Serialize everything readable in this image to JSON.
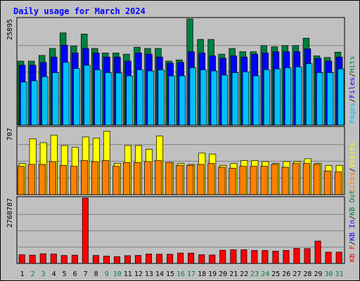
{
  "chart_data": {
    "type": "bar",
    "title": "Daily usage for March 2024",
    "colors": {
      "background": "#c0c0c0",
      "plot": "#c0c0c0",
      "title": "#0000ff",
      "hits": "#008040",
      "files": "#0000ff",
      "pages": "#00c0ff",
      "visits": "#ffff00",
      "sites": "#ff8000",
      "kbin": "#0000ff",
      "kbout": "#008040",
      "kbf": "#ff0000",
      "weekday_label": "#000000",
      "weekend_label": "#008040"
    },
    "categories": [
      "1",
      "2",
      "3",
      "4",
      "5",
      "6",
      "7",
      "8",
      "9",
      "10",
      "11",
      "12",
      "13",
      "14",
      "15",
      "16",
      "17",
      "18",
      "19",
      "20",
      "21",
      "22",
      "23",
      "24",
      "25",
      "26",
      "27",
      "28",
      "29",
      "30",
      "31"
    ],
    "weekend_days": [
      "2",
      "3",
      "9",
      "10",
      "16",
      "17",
      "23",
      "24",
      "30",
      "31"
    ],
    "panels": [
      {
        "id": "top",
        "max_label": "25895",
        "ylim": [
          0,
          25895
        ],
        "legend": [
          {
            "label": "Pages",
            "color": "#00c0ff"
          },
          {
            "label": "/",
            "color": "#000000"
          },
          {
            "label": "Files",
            "color": "#0000ff"
          },
          {
            "label": "/",
            "color": "#000000"
          },
          {
            "label": "Hits",
            "color": "#008040"
          }
        ],
        "series": [
          {
            "name": "Hits",
            "color": "#008040",
            "values": [
              15600,
              15600,
              17000,
              18700,
              22500,
              19300,
              22200,
              18700,
              17600,
              17600,
              17300,
              19000,
              18700,
              18700,
              15600,
              15900,
              25900,
              20900,
              20900,
              17300,
              18700,
              17900,
              17900,
              19400,
              19100,
              19400,
              19400,
              21200,
              16900,
              16500,
              17800
            ]
          },
          {
            "name": "Files",
            "color": "#0000ff",
            "values": [
              14600,
              14600,
              15300,
              16600,
              19500,
              17600,
              18700,
              17600,
              16600,
              16600,
              15600,
              17600,
              17300,
              16600,
              15100,
              15300,
              17900,
              17600,
              16900,
              16300,
              16900,
              16600,
              17300,
              17600,
              17900,
              17900,
              17900,
              18600,
              16300,
              15600,
              16600
            ]
          },
          {
            "name": "Pages",
            "color": "#00c0ff",
            "values": [
              10500,
              10800,
              11800,
              12800,
              15300,
              13800,
              14600,
              13500,
              12800,
              12700,
              12000,
              13500,
              13200,
              13500,
              12000,
              12000,
              14000,
              13500,
              13200,
              12200,
              12800,
              13000,
              12000,
              13500,
              13700,
              14000,
              14200,
              15000,
              12800,
              12800,
              13700
            ]
          }
        ]
      },
      {
        "id": "middle",
        "max_label": "707",
        "ylim": [
          0,
          707
        ],
        "legend": [
          {
            "label": "Sites",
            "color": "#ff8000"
          },
          {
            "label": "/",
            "color": "#000000"
          },
          {
            "label": "Visits",
            "color": "#ffff00"
          }
        ],
        "series": [
          {
            "name": "Visits",
            "color": "#ffff00",
            "values": [
              330,
              590,
              550,
              630,
              520,
              500,
              610,
              600,
              670,
              330,
              520,
              520,
              480,
              620,
              340,
              330,
              320,
              440,
              430,
              310,
              330,
              360,
              360,
              350,
              330,
              350,
              350,
              380,
              330,
              310,
              310
            ]
          },
          {
            "name": "Sites",
            "color": "#ff8000",
            "values": [
              300,
              320,
              320,
              350,
              310,
              300,
              360,
              350,
              360,
              300,
              340,
              340,
              350,
              360,
              340,
              310,
              310,
              320,
              330,
              290,
              280,
              300,
              300,
              300,
              320,
              290,
              330,
              330,
              320,
              250,
              240
            ]
          }
        ]
      },
      {
        "id": "bottom",
        "max_label": "2768787",
        "ylim": [
          0,
          2768787
        ],
        "legend": [
          {
            "label": "KB F",
            "color": "#ff0000"
          },
          {
            "label": "/",
            "color": "#000000"
          },
          {
            "label": "KB In",
            "color": "#0000ff"
          },
          {
            "label": "/",
            "color": "#000000"
          },
          {
            "label": "KB Out",
            "color": "#008040"
          }
        ],
        "series": [
          {
            "name": "KB F",
            "color": "#ff0000",
            "values": [
              370000,
              350000,
              410000,
              400000,
              340000,
              350000,
              2770000,
              340000,
              310000,
              290000,
              330000,
              340000,
              400000,
              390000,
              390000,
              440000,
              440000,
              370000,
              360000,
              560000,
              580000,
              580000,
              550000,
              550000,
              520000,
              550000,
              640000,
              630000,
              950000,
              480000,
              480000
            ]
          }
        ]
      }
    ]
  }
}
